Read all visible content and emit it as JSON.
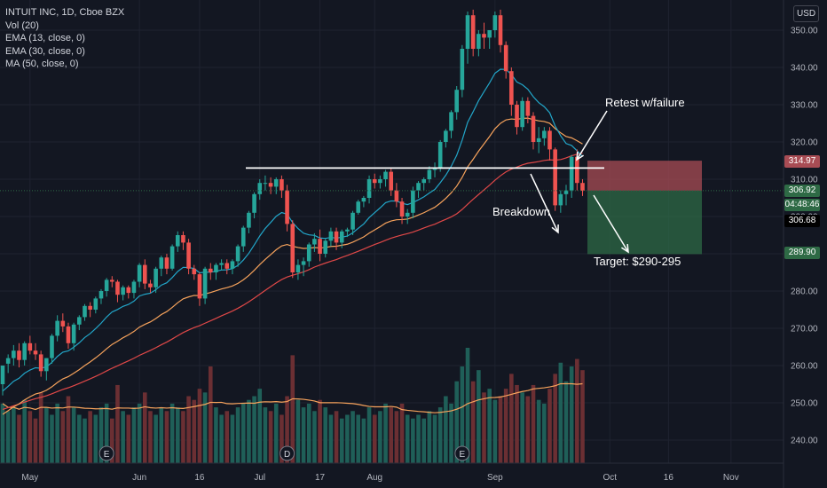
{
  "header": {
    "symbol_line": "INTUIT INC, 1D, Cboe BZX",
    "indicators": [
      "Vol (20)",
      "EMA (13, close, 0)",
      "EMA (30, close, 0)",
      "MA (50, close, 0)"
    ],
    "currency": "USD"
  },
  "annotations": {
    "retest": "Retest w/failure",
    "breakdown": "Breakdown",
    "target": "Target: $290-295"
  },
  "price_labels": {
    "stop": "314.97",
    "last": "306.92",
    "countdown": "04:48:46",
    "crosshair": "306.68",
    "target": "289.90"
  },
  "colors": {
    "background": "#131722",
    "up": "#26a69a",
    "down": "#ef5350",
    "ema13": "#22a6c9",
    "ema30": "#f7a35c",
    "ma50": "#e04848",
    "stop_zone": "#a84c54",
    "target_zone": "#2e6a45"
  },
  "chart_data": {
    "type": "candlestick",
    "title": "INTUIT INC, 1D, Cboe BZX",
    "ylim": [
      232,
      355
    ],
    "y_ticks": [
      240,
      250,
      260,
      270,
      280,
      290,
      300,
      310,
      320,
      330,
      340,
      350
    ],
    "x_ticks": [
      "May",
      "Jun",
      "16",
      "Jul",
      "17",
      "Aug",
      "Sep",
      "Oct",
      "16",
      "Nov"
    ],
    "earnings_markers": [
      "E",
      "D",
      "E"
    ],
    "resistance_level": 313,
    "stop_level": 314.97,
    "entry_level": 306.92,
    "target_level": 289.9,
    "dates": [
      "2021-04-26",
      "2021-04-27",
      "2021-04-28",
      "2021-04-29",
      "2021-04-30",
      "2021-05-03",
      "2021-05-04",
      "2021-05-05",
      "2021-05-06",
      "2021-05-07",
      "2021-05-10",
      "2021-05-11",
      "2021-05-12",
      "2021-05-13",
      "2021-05-14",
      "2021-05-17",
      "2021-05-18",
      "2021-05-19",
      "2021-05-20",
      "2021-05-21",
      "2021-05-24",
      "2021-05-25",
      "2021-05-26",
      "2021-05-27",
      "2021-05-28",
      "2021-06-01",
      "2021-06-02",
      "2021-06-03",
      "2021-06-04",
      "2021-06-07",
      "2021-06-08",
      "2021-06-09",
      "2021-06-10",
      "2021-06-11",
      "2021-06-14",
      "2021-06-15",
      "2021-06-16",
      "2021-06-17",
      "2021-06-18",
      "2021-06-21",
      "2021-06-22",
      "2021-06-23",
      "2021-06-24",
      "2021-06-25",
      "2021-06-28",
      "2021-06-29",
      "2021-06-30",
      "2021-07-01",
      "2021-07-02",
      "2021-07-06",
      "2021-07-07",
      "2021-07-08",
      "2021-07-09",
      "2021-07-12",
      "2021-07-13",
      "2021-07-14",
      "2021-07-15",
      "2021-07-16",
      "2021-07-19",
      "2021-07-20",
      "2021-07-21",
      "2021-07-22",
      "2021-07-23",
      "2021-07-26",
      "2021-07-27",
      "2021-07-28",
      "2021-07-29",
      "2021-07-30",
      "2021-08-02",
      "2021-08-03",
      "2021-08-04",
      "2021-08-05",
      "2021-08-06",
      "2021-08-09",
      "2021-08-10",
      "2021-08-11",
      "2021-08-12",
      "2021-08-13",
      "2021-08-16",
      "2021-08-17",
      "2021-08-18",
      "2021-08-19",
      "2021-08-20",
      "2021-08-23",
      "2021-08-24",
      "2021-08-25",
      "2021-08-26",
      "2021-08-27",
      "2021-08-30",
      "2021-08-31",
      "2021-09-01",
      "2021-09-02",
      "2021-09-03",
      "2021-09-07",
      "2021-09-08",
      "2021-09-09",
      "2021-09-10",
      "2021-09-13",
      "2021-09-14",
      "2021-09-15",
      "2021-09-16",
      "2021-09-17",
      "2021-09-20",
      "2021-09-21",
      "2021-09-22",
      "2021-09-23",
      "2021-09-24"
    ],
    "open": [
      255.0,
      260.5,
      262.0,
      264.0,
      261.5,
      266.0,
      264.0,
      263.0,
      258.5,
      262.0,
      268.0,
      272.0,
      270.5,
      266.0,
      271.0,
      273.0,
      276.0,
      275.0,
      278.0,
      280.0,
      283.0,
      282.5,
      279.0,
      281.0,
      279.5,
      282.5,
      287.0,
      282.0,
      281.0,
      286.0,
      289.0,
      286.0,
      292.0,
      295.0,
      293.0,
      286.0,
      284.5,
      278.0,
      286.0,
      285.0,
      287.0,
      287.5,
      286.0,
      288.0,
      292.0,
      297.0,
      301.0,
      306.0,
      309.0,
      309.0,
      308.0,
      310.0,
      307.0,
      298.0,
      285.0,
      287.0,
      288.0,
      292.5,
      294.0,
      290.0,
      293.5,
      296.0,
      293.0,
      296.0,
      296.5,
      301.0,
      304.0,
      305.0,
      310.0,
      309.0,
      310.0,
      312.0,
      307.0,
      304.0,
      300.0,
      301.0,
      307.0,
      309.0,
      310.0,
      312.5,
      313.0,
      320.0,
      323.0,
      328.0,
      334.0,
      345.0,
      354.0,
      345.0,
      349.0,
      348.0,
      350.0,
      354.0,
      346.0,
      339.0,
      330.0,
      324.0,
      331.0,
      327.0,
      320.0,
      321.0,
      323.0,
      318.0,
      303.0,
      306.0,
      307.0,
      316.0,
      309.0
    ],
    "high": [
      260.0,
      263.0,
      265.5,
      266.0,
      266.5,
      268.0,
      266.0,
      264.0,
      262.0,
      268.5,
      273.5,
      274.0,
      271.5,
      271.5,
      273.5,
      276.5,
      277.0,
      278.5,
      280.5,
      283.5,
      284.0,
      283.0,
      281.5,
      281.5,
      283.0,
      287.5,
      288.5,
      283.0,
      286.5,
      289.5,
      290.0,
      292.5,
      296.0,
      296.0,
      294.0,
      287.0,
      285.0,
      286.5,
      287.5,
      287.5,
      288.5,
      288.5,
      288.5,
      292.5,
      297.5,
      301.5,
      306.5,
      310.0,
      311.0,
      310.5,
      310.5,
      311.0,
      308.5,
      299.0,
      288.5,
      289.0,
      293.0,
      295.5,
      296.5,
      294.0,
      297.0,
      297.0,
      296.5,
      297.0,
      301.5,
      304.5,
      305.5,
      311.0,
      311.5,
      311.0,
      312.5,
      313.0,
      309.0,
      305.0,
      302.0,
      308.0,
      309.5,
      310.5,
      313.5,
      314.5,
      320.5,
      323.5,
      328.5,
      335.0,
      346.0,
      355.0,
      355.5,
      350.0,
      352.0,
      350.0,
      355.0,
      355.5,
      347.0,
      340.0,
      331.0,
      332.0,
      332.0,
      328.0,
      324.0,
      324.0,
      324.0,
      318.5,
      307.0,
      308.5,
      316.5,
      318.0,
      310.0
    ],
    "low": [
      252.0,
      258.0,
      260.0,
      259.5,
      260.0,
      263.0,
      261.5,
      257.0,
      256.0,
      260.5,
      266.5,
      269.0,
      264.5,
      264.0,
      269.5,
      272.0,
      273.0,
      274.0,
      276.5,
      278.5,
      281.0,
      277.0,
      277.5,
      278.0,
      278.0,
      281.0,
      280.5,
      279.5,
      279.5,
      284.0,
      284.5,
      285.5,
      290.5,
      291.0,
      284.5,
      283.0,
      276.0,
      276.5,
      283.0,
      283.0,
      285.5,
      284.5,
      284.5,
      286.5,
      290.5,
      295.5,
      299.5,
      304.5,
      307.0,
      306.0,
      306.0,
      305.0,
      296.0,
      283.5,
      283.0,
      284.0,
      286.5,
      290.5,
      288.0,
      289.0,
      292.0,
      291.0,
      291.5,
      294.5,
      295.0,
      300.5,
      302.5,
      303.5,
      307.5,
      307.5,
      308.0,
      305.5,
      302.5,
      298.0,
      298.0,
      299.5,
      305.0,
      307.0,
      309.0,
      310.5,
      312.0,
      318.5,
      321.0,
      326.0,
      332.0,
      341.0,
      343.0,
      343.0,
      345.0,
      345.0,
      348.0,
      344.0,
      337.0,
      327.0,
      322.0,
      323.0,
      325.0,
      318.0,
      317.0,
      319.0,
      315.0,
      301.5,
      301.0,
      303.0,
      305.0,
      307.0,
      305.5
    ],
    "close": [
      260.0,
      262.0,
      264.0,
      261.5,
      266.0,
      264.0,
      263.0,
      258.5,
      262.0,
      268.0,
      272.0,
      270.5,
      266.0,
      271.0,
      273.0,
      276.0,
      275.0,
      278.0,
      280.0,
      283.0,
      282.5,
      279.0,
      281.0,
      279.5,
      282.5,
      287.0,
      282.0,
      281.0,
      286.0,
      289.0,
      286.0,
      292.0,
      295.0,
      293.0,
      286.0,
      284.5,
      278.0,
      286.0,
      285.0,
      287.0,
      287.5,
      286.0,
      288.0,
      292.0,
      297.0,
      301.0,
      306.0,
      309.0,
      309.0,
      308.0,
      310.0,
      307.0,
      298.0,
      285.0,
      287.0,
      288.0,
      292.5,
      294.0,
      290.0,
      293.5,
      296.0,
      293.0,
      296.0,
      296.5,
      301.0,
      304.0,
      305.0,
      310.0,
      309.0,
      310.0,
      312.0,
      307.0,
      304.0,
      300.0,
      301.0,
      307.0,
      309.0,
      310.0,
      312.5,
      313.0,
      320.0,
      323.0,
      328.0,
      334.0,
      345.0,
      354.0,
      345.0,
      349.0,
      348.0,
      350.0,
      354.0,
      346.0,
      339.0,
      330.0,
      324.0,
      331.0,
      327.0,
      320.0,
      321.0,
      323.0,
      318.0,
      303.0,
      306.0,
      307.0,
      316.0,
      309.0,
      306.92
    ],
    "volume": [
      1.6,
      1.4,
      1.5,
      1.3,
      1.7,
      1.4,
      1.2,
      1.9,
      1.5,
      1.3,
      1.6,
      1.4,
      1.8,
      1.5,
      1.3,
      1.2,
      1.4,
      1.3,
      1.5,
      1.6,
      1.2,
      2.1,
      1.4,
      1.3,
      1.5,
      1.6,
      1.9,
      1.4,
      1.3,
      1.5,
      1.4,
      1.6,
      1.5,
      1.4,
      1.8,
      1.7,
      2.0,
      1.9,
      2.6,
      1.5,
      1.3,
      1.4,
      1.3,
      1.5,
      1.6,
      1.7,
      1.8,
      2.0,
      1.5,
      1.4,
      1.6,
      1.3,
      1.8,
      2.9,
      1.7,
      1.5,
      1.6,
      1.4,
      1.7,
      1.5,
      1.3,
      1.4,
      1.2,
      1.3,
      1.4,
      1.3,
      1.2,
      1.5,
      1.3,
      1.4,
      1.6,
      1.5,
      1.4,
      1.6,
      1.3,
      1.2,
      1.3,
      1.2,
      1.4,
      1.3,
      1.5,
      1.8,
      1.6,
      2.2,
      2.6,
      3.1,
      2.2,
      2.5,
      1.9,
      2.0,
      1.7,
      1.8,
      2.0,
      2.4,
      2.1,
      1.9,
      1.8,
      2.1,
      1.7,
      1.6,
      2.0,
      2.4,
      2.7,
      2.2,
      2.6,
      2.8,
      2.5
    ]
  }
}
